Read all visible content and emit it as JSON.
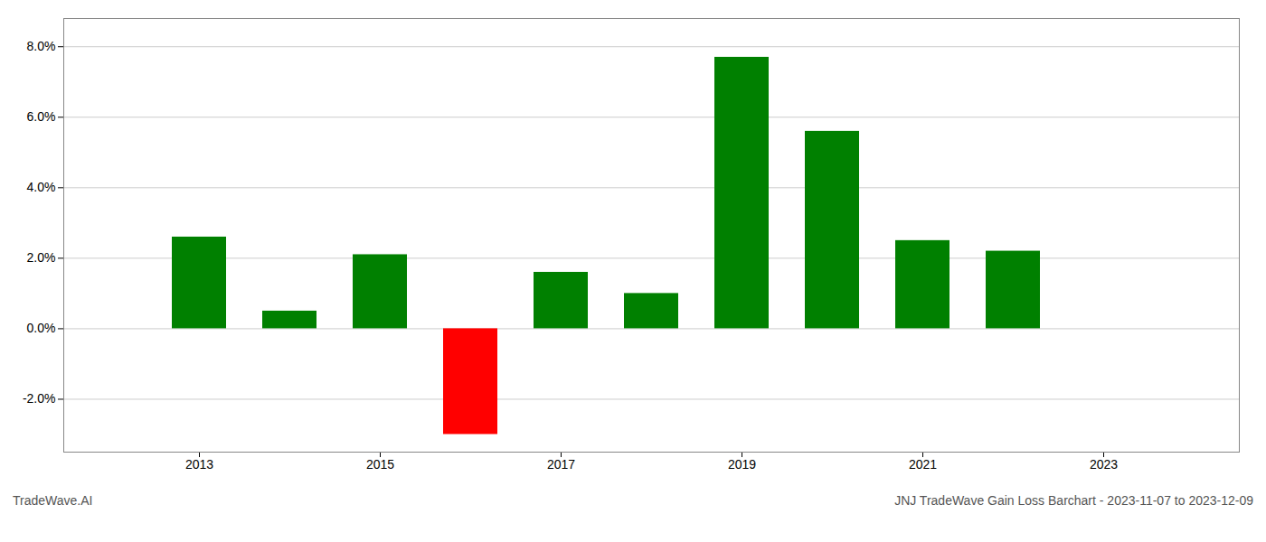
{
  "chart_data": {
    "type": "bar",
    "title": "JNJ TradeWave Gain Loss Barchart - 2023-11-07 to 2023-12-09",
    "annotations": [
      "TradeWave.AI"
    ],
    "x": [
      2013,
      2014,
      2015,
      2016,
      2017,
      2018,
      2019,
      2020,
      2021,
      2022
    ],
    "values": [
      0.026,
      0.005,
      0.021,
      -0.03,
      0.016,
      0.01,
      0.077,
      0.056,
      0.025,
      0.022
    ],
    "colors": [
      "#008000",
      "#008000",
      "#008000",
      "#ff0000",
      "#008000",
      "#008000",
      "#008000",
      "#008000",
      "#008000",
      "#008000"
    ],
    "xlim": [
      2011.5,
      2024.5
    ],
    "xticks": [
      2013,
      2015,
      2017,
      2019,
      2021,
      2023
    ],
    "ylim": [
      -0.035,
      0.088
    ],
    "yticks": [
      {
        "value": -0.02,
        "label": "-2.0%"
      },
      {
        "value": 0.0,
        "label": "0.0%"
      },
      {
        "value": 0.02,
        "label": "2.0%"
      },
      {
        "value": 0.04,
        "label": "4.0%"
      },
      {
        "value": 0.06,
        "label": "6.0%"
      },
      {
        "value": 0.08,
        "label": "8.0%"
      }
    ],
    "grid": true
  }
}
